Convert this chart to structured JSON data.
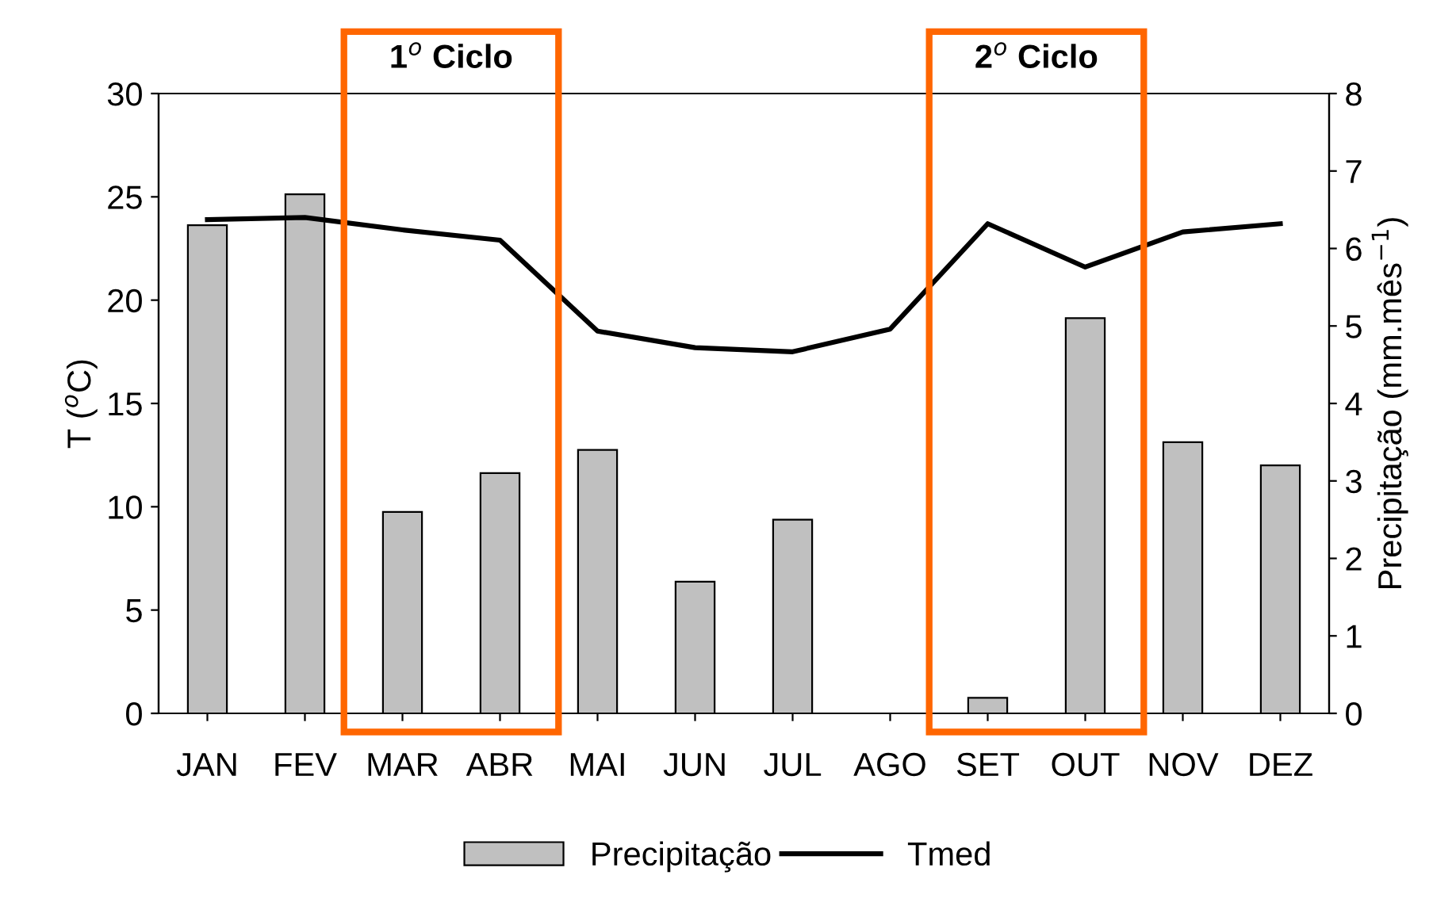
{
  "chart_data": {
    "type": "bar",
    "categories": [
      "JAN",
      "FEV",
      "MAR",
      "ABR",
      "MAI",
      "JUN",
      "JUL",
      "AGO",
      "SET",
      "OUT",
      "NOV",
      "DEZ"
    ],
    "series": [
      {
        "name": "Precipitação",
        "axis": "y2",
        "color": "#c0c0c0",
        "values": [
          6.3,
          6.7,
          2.6,
          3.1,
          3.4,
          1.7,
          2.5,
          null,
          0.2,
          5.1,
          3.5,
          3.2
        ]
      },
      {
        "name": "Tmed",
        "type": "line",
        "color": "#000000",
        "values": [
          23.9,
          24.0,
          23.4,
          22.9,
          18.5,
          17.7,
          17.5,
          18.6,
          23.7,
          21.6,
          23.3,
          23.7
        ]
      }
    ],
    "ylabel": "T ($^{o}$C)",
    "y2label": "Precipitação (mm.mês$^{−1}$)",
    "ylim": [
      0,
      30
    ],
    "yticks": [
      0,
      5,
      10,
      15,
      20,
      25,
      30
    ],
    "y2lim": [
      0,
      8
    ],
    "y2ticks": [
      0,
      1,
      2,
      3,
      4,
      5,
      6,
      7,
      8
    ],
    "annotations": [
      "1$^{o}$ Ciclo",
      "2$^{o}$ Ciclo"
    ],
    "legend": "bottom",
    "marker": "none",
    "line_style": "solid",
    "grid": false
  }
}
